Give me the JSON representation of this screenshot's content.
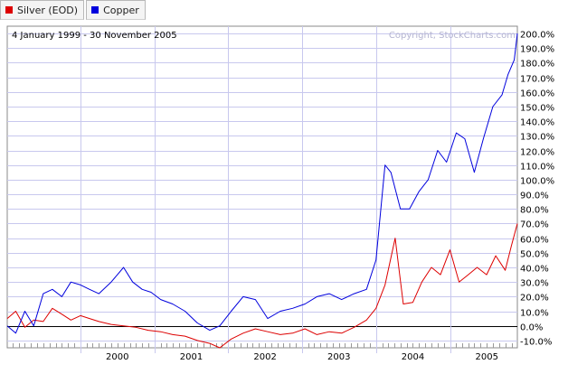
{
  "legend_tabs": [
    {
      "label": "Silver (EOD)",
      "color": "#dd0000"
    },
    {
      "label": "Copper",
      "color": "#0000dd"
    }
  ],
  "chart_data": {
    "type": "line",
    "date_range_label": "4 January 1999 - 30 November 2005",
    "watermark": "Copyright, StockCharts.com",
    "ylim": [
      -15,
      205
    ],
    "y_unit": "%",
    "y_axis_side": "right",
    "grid": true,
    "x_tick_labels": [
      "2000",
      "2001",
      "2002",
      "2003",
      "2004",
      "2005"
    ],
    "y_tick_labels": [
      "-10.0%",
      "0.0%",
      "10.0%",
      "20.0%",
      "30.0%",
      "40.0%",
      "50.0%",
      "60.0%",
      "70.0%",
      "80.0%",
      "90.0%",
      "100.0%",
      "110.0%",
      "120.0%",
      "130.0%",
      "140.0%",
      "150.0%",
      "160.0%",
      "170.0%",
      "180.0%",
      "190.0%",
      "200.0%"
    ],
    "series": [
      {
        "name": "Silver (EOD)",
        "color": "#dd0000",
        "x": [
          "1999-01-04",
          "1999-02-15",
          "1999-04-01",
          "1999-05-15",
          "1999-07-01",
          "1999-08-15",
          "1999-10-01",
          "1999-11-15",
          "2000-01-01",
          "2000-02-15",
          "2000-04-01",
          "2000-06-01",
          "2000-08-01",
          "2000-10-01",
          "2000-12-01",
          "2001-02-01",
          "2001-04-01",
          "2001-06-01",
          "2001-08-01",
          "2001-10-01",
          "2001-11-20",
          "2002-01-15",
          "2002-03-15",
          "2002-05-15",
          "2002-07-15",
          "2002-09-15",
          "2002-11-15",
          "2003-01-15",
          "2003-03-15",
          "2003-05-15",
          "2003-07-15",
          "2003-09-15",
          "2003-11-15",
          "2004-01-01",
          "2004-02-15",
          "2004-04-05",
          "2004-05-15",
          "2004-07-01",
          "2004-08-15",
          "2004-10-01",
          "2004-11-15",
          "2005-01-01",
          "2005-02-15",
          "2005-04-01",
          "2005-05-15",
          "2005-07-01",
          "2005-08-15",
          "2005-10-01",
          "2005-11-01",
          "2005-11-30"
        ],
        "values": [
          5,
          10,
          -1,
          4,
          3,
          12,
          8,
          4,
          7,
          5,
          3,
          1,
          0,
          -1,
          -3,
          -4,
          -6,
          -7,
          -10,
          -12,
          -15,
          -9,
          -5,
          -2,
          -4,
          -6,
          -5,
          -2,
          -6,
          -4,
          -5,
          -1,
          4,
          12,
          28,
          60,
          15,
          16,
          30,
          40,
          35,
          52,
          30,
          35,
          40,
          35,
          48,
          38,
          55,
          70
        ]
      },
      {
        "name": "Copper",
        "color": "#0000dd",
        "x": [
          "1999-01-04",
          "1999-02-15",
          "1999-04-01",
          "1999-05-15",
          "1999-07-01",
          "1999-08-15",
          "1999-10-01",
          "1999-11-15",
          "2000-01-01",
          "2000-02-15",
          "2000-04-01",
          "2000-06-01",
          "2000-08-01",
          "2000-09-15",
          "2000-11-01",
          "2000-12-15",
          "2001-02-01",
          "2001-04-01",
          "2001-06-01",
          "2001-08-01",
          "2001-10-01",
          "2001-11-20",
          "2002-01-15",
          "2002-03-15",
          "2002-05-15",
          "2002-07-15",
          "2002-09-15",
          "2002-11-15",
          "2003-01-15",
          "2003-03-15",
          "2003-05-15",
          "2003-07-15",
          "2003-09-15",
          "2003-11-15",
          "2004-01-01",
          "2004-02-15",
          "2004-03-15",
          "2004-05-01",
          "2004-06-15",
          "2004-08-01",
          "2004-09-15",
          "2004-11-01",
          "2004-12-15",
          "2005-02-01",
          "2005-03-15",
          "2005-05-01",
          "2005-06-15",
          "2005-08-01",
          "2005-09-15",
          "2005-10-15",
          "2005-11-15",
          "2005-11-30"
        ],
        "values": [
          0,
          -5,
          10,
          0,
          22,
          25,
          20,
          30,
          28,
          25,
          22,
          30,
          40,
          30,
          25,
          23,
          18,
          15,
          10,
          2,
          -3,
          0,
          10,
          20,
          18,
          5,
          10,
          12,
          15,
          20,
          22,
          18,
          22,
          25,
          45,
          110,
          105,
          80,
          80,
          92,
          100,
          120,
          112,
          132,
          128,
          105,
          128,
          150,
          158,
          172,
          182,
          200
        ]
      }
    ]
  }
}
